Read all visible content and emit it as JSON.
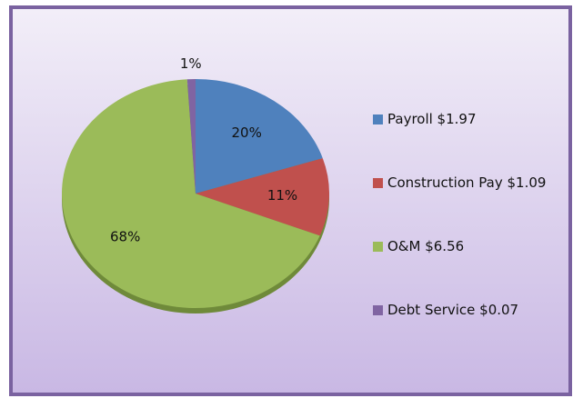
{
  "chart_data": {
    "type": "pie",
    "categories": [
      "Payroll  $1.97",
      "Construction Pay $1.09",
      "O&M  $6.56",
      "Debt Service  $0.07"
    ],
    "values": [
      20,
      11,
      68,
      1
    ],
    "value_labels": [
      "20%",
      "11%",
      "68%",
      "1%"
    ],
    "colors": [
      "#4f81bd",
      "#c0504d",
      "#9bbb59",
      "#8064a2"
    ],
    "legend": "right"
  }
}
